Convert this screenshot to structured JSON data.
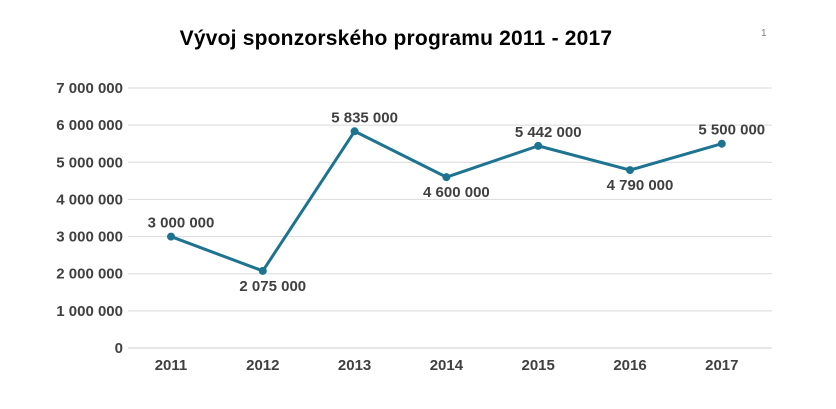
{
  "page": {
    "page_number": "1",
    "background": "#ffffff"
  },
  "chart_data": {
    "type": "line",
    "title": "Vývoj sponzorského programu 2011 - 2017",
    "categories": [
      "2011",
      "2012",
      "2013",
      "2014",
      "2015",
      "2016",
      "2017"
    ],
    "values": [
      3000000,
      2075000,
      5835000,
      4600000,
      5442000,
      4790000,
      5500000
    ],
    "data_labels": [
      "3 000 000",
      "2 075 000",
      "5 835 000",
      "4 600 000",
      "5 442 000",
      "4 790 000",
      "5 500 000"
    ],
    "data_label_positions": [
      "above",
      "below",
      "above",
      "below",
      "above",
      "below",
      "above"
    ],
    "y_ticks": [
      "7 000 000",
      "6 000 000",
      "5 000 000",
      "4 000 000",
      "3 000 000",
      "2 000 000",
      "1 000 000",
      "0"
    ],
    "ylim": [
      0,
      7000000
    ],
    "xlabel": "",
    "ylabel": "",
    "grid": true,
    "legend": false,
    "marker": "circle",
    "colors": {
      "line": "#1d7390",
      "marker": "#1d7390",
      "gridline": "#d9d9d9",
      "axis_line": "#cfcfcf",
      "tick_label": "#404040",
      "data_label": "#404040",
      "title": "#000000",
      "page_number": "#808080"
    }
  }
}
